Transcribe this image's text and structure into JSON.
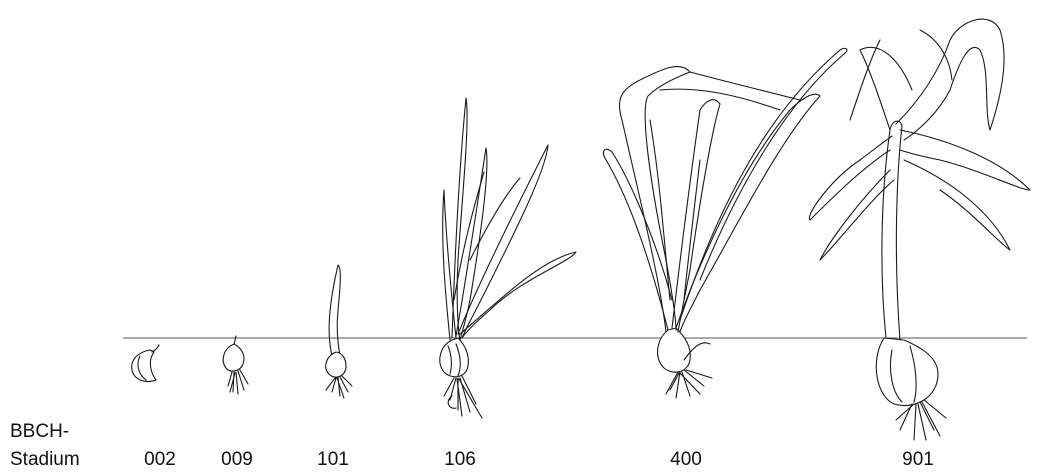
{
  "axis_label": [
    "BBCH-",
    "Stadium"
  ],
  "stages": [
    "002",
    "009",
    "101",
    "106",
    "400",
    "901"
  ]
}
